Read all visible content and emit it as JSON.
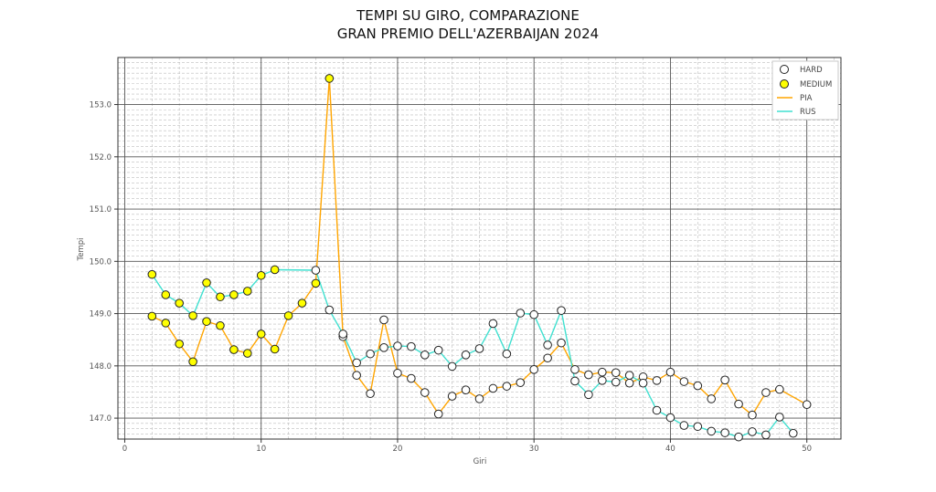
{
  "chart_data": {
    "type": "line",
    "title": [
      "TEMPI SU GIRO, COMPARAZIONE",
      "GRAN PREMIO DELL'AZERBAIJAN 2024"
    ],
    "xlabel": "Giri",
    "ylabel": "Tempi",
    "xlim": [
      -0.5,
      52.5
    ],
    "ylim": [
      146.6,
      153.9
    ],
    "x_ticks": [
      0,
      10,
      20,
      30,
      40,
      50
    ],
    "y_ticks": [
      147.0,
      148.0,
      149.0,
      150.0,
      151.0,
      152.0,
      153.0
    ],
    "grid": true,
    "legend_position": "top-right",
    "legend": [
      {
        "label": "HARD",
        "kind": "marker",
        "fill": "#ffffff"
      },
      {
        "label": "MEDIUM",
        "kind": "marker",
        "fill": "#ffff00"
      },
      {
        "label": "PIA",
        "kind": "line",
        "color": "#ffa500"
      },
      {
        "label": "RUS",
        "kind": "line",
        "color": "#40e0d0"
      }
    ],
    "series": [
      {
        "name": "PIA",
        "color": "#ffa500",
        "points": [
          {
            "x": 2,
            "y": 148.95,
            "compound": "MEDIUM"
          },
          {
            "x": 3,
            "y": 148.82,
            "compound": "MEDIUM"
          },
          {
            "x": 4,
            "y": 148.42,
            "compound": "MEDIUM"
          },
          {
            "x": 5,
            "y": 148.08,
            "compound": "MEDIUM"
          },
          {
            "x": 6,
            "y": 148.85,
            "compound": "MEDIUM"
          },
          {
            "x": 7,
            "y": 148.77,
            "compound": "MEDIUM"
          },
          {
            "x": 8,
            "y": 148.31,
            "compound": "MEDIUM"
          },
          {
            "x": 9,
            "y": 148.24,
            "compound": "MEDIUM"
          },
          {
            "x": 10,
            "y": 148.61,
            "compound": "MEDIUM"
          },
          {
            "x": 11,
            "y": 148.32,
            "compound": "MEDIUM"
          },
          {
            "x": 12,
            "y": 148.96,
            "compound": "MEDIUM"
          },
          {
            "x": 13,
            "y": 149.2,
            "compound": "MEDIUM"
          },
          {
            "x": 14,
            "y": 149.58,
            "compound": "MEDIUM"
          },
          {
            "x": 15,
            "y": 153.5,
            "compound": "MEDIUM"
          },
          {
            "x": 16,
            "y": 148.56,
            "compound": "HARD"
          },
          {
            "x": 17,
            "y": 147.82,
            "compound": "HARD"
          },
          {
            "x": 18,
            "y": 147.47,
            "compound": "HARD"
          },
          {
            "x": 19,
            "y": 148.88,
            "compound": "HARD"
          },
          {
            "x": 20,
            "y": 147.86,
            "compound": "HARD"
          },
          {
            "x": 21,
            "y": 147.76,
            "compound": "HARD"
          },
          {
            "x": 22,
            "y": 147.49,
            "compound": "HARD"
          },
          {
            "x": 23,
            "y": 147.08,
            "compound": "HARD"
          },
          {
            "x": 24,
            "y": 147.42,
            "compound": "HARD"
          },
          {
            "x": 25,
            "y": 147.54,
            "compound": "HARD"
          },
          {
            "x": 26,
            "y": 147.37,
            "compound": "HARD"
          },
          {
            "x": 27,
            "y": 147.57,
            "compound": "HARD"
          },
          {
            "x": 28,
            "y": 147.61,
            "compound": "HARD"
          },
          {
            "x": 29,
            "y": 147.68,
            "compound": "HARD"
          },
          {
            "x": 30,
            "y": 147.93,
            "compound": "HARD"
          },
          {
            "x": 31,
            "y": 148.15,
            "compound": "HARD"
          },
          {
            "x": 32,
            "y": 148.44,
            "compound": "HARD"
          },
          {
            "x": 33,
            "y": 147.93,
            "compound": "HARD"
          },
          {
            "x": 34,
            "y": 147.83,
            "compound": "HARD"
          },
          {
            "x": 35,
            "y": 147.88,
            "compound": "HARD"
          },
          {
            "x": 36,
            "y": 147.87,
            "compound": "HARD"
          },
          {
            "x": 37,
            "y": 147.67,
            "compound": "HARD"
          },
          {
            "x": 38,
            "y": 147.79,
            "compound": "HARD"
          },
          {
            "x": 39,
            "y": 147.72,
            "compound": "HARD"
          },
          {
            "x": 40,
            "y": 147.88,
            "compound": "HARD"
          },
          {
            "x": 41,
            "y": 147.7,
            "compound": "HARD"
          },
          {
            "x": 42,
            "y": 147.62,
            "compound": "HARD"
          },
          {
            "x": 43,
            "y": 147.37,
            "compound": "HARD"
          },
          {
            "x": 44,
            "y": 147.73,
            "compound": "HARD"
          },
          {
            "x": 45,
            "y": 147.27,
            "compound": "HARD"
          },
          {
            "x": 46,
            "y": 147.06,
            "compound": "HARD"
          },
          {
            "x": 47,
            "y": 147.49,
            "compound": "HARD"
          },
          {
            "x": 48,
            "y": 147.55,
            "compound": "HARD"
          },
          {
            "x": 50,
            "y": 147.26,
            "compound": "HARD"
          }
        ]
      },
      {
        "name": "RUS",
        "color": "#40e0d0",
        "points": [
          {
            "x": 2,
            "y": 149.75,
            "compound": "MEDIUM"
          },
          {
            "x": 3,
            "y": 149.36,
            "compound": "MEDIUM"
          },
          {
            "x": 4,
            "y": 149.2,
            "compound": "MEDIUM"
          },
          {
            "x": 5,
            "y": 148.96,
            "compound": "MEDIUM"
          },
          {
            "x": 6,
            "y": 149.59,
            "compound": "MEDIUM"
          },
          {
            "x": 7,
            "y": 149.32,
            "compound": "MEDIUM"
          },
          {
            "x": 8,
            "y": 149.36,
            "compound": "MEDIUM"
          },
          {
            "x": 9,
            "y": 149.43,
            "compound": "MEDIUM"
          },
          {
            "x": 10,
            "y": 149.73,
            "compound": "MEDIUM"
          },
          {
            "x": 11,
            "y": 149.84,
            "compound": "MEDIUM"
          },
          {
            "x": 14,
            "y": 149.83,
            "compound": "HARD"
          },
          {
            "x": 15,
            "y": 149.07,
            "compound": "HARD"
          },
          {
            "x": 16,
            "y": 148.61,
            "compound": "HARD"
          },
          {
            "x": 17,
            "y": 148.06,
            "compound": "HARD"
          },
          {
            "x": 18,
            "y": 148.23,
            "compound": "HARD"
          },
          {
            "x": 19,
            "y": 148.35,
            "compound": "HARD"
          },
          {
            "x": 20,
            "y": 148.38,
            "compound": "HARD"
          },
          {
            "x": 21,
            "y": 148.37,
            "compound": "HARD"
          },
          {
            "x": 22,
            "y": 148.21,
            "compound": "HARD"
          },
          {
            "x": 23,
            "y": 148.3,
            "compound": "HARD"
          },
          {
            "x": 24,
            "y": 147.99,
            "compound": "HARD"
          },
          {
            "x": 25,
            "y": 148.21,
            "compound": "HARD"
          },
          {
            "x": 26,
            "y": 148.33,
            "compound": "HARD"
          },
          {
            "x": 27,
            "y": 148.81,
            "compound": "HARD"
          },
          {
            "x": 28,
            "y": 148.23,
            "compound": "HARD"
          },
          {
            "x": 29,
            "y": 149.01,
            "compound": "HARD"
          },
          {
            "x": 30,
            "y": 148.98,
            "compound": "HARD"
          },
          {
            "x": 31,
            "y": 148.4,
            "compound": "HARD"
          },
          {
            "x": 32,
            "y": 149.06,
            "compound": "HARD"
          },
          {
            "x": 33,
            "y": 147.71,
            "compound": "HARD"
          },
          {
            "x": 34,
            "y": 147.45,
            "compound": "HARD"
          },
          {
            "x": 35,
            "y": 147.72,
            "compound": "HARD"
          },
          {
            "x": 36,
            "y": 147.69,
            "compound": "HARD"
          },
          {
            "x": 37,
            "y": 147.82,
            "compound": "HARD"
          },
          {
            "x": 38,
            "y": 147.67,
            "compound": "HARD"
          },
          {
            "x": 39,
            "y": 147.15,
            "compound": "HARD"
          },
          {
            "x": 40,
            "y": 147.01,
            "compound": "HARD"
          },
          {
            "x": 41,
            "y": 146.86,
            "compound": "HARD"
          },
          {
            "x": 42,
            "y": 146.84,
            "compound": "HARD"
          },
          {
            "x": 43,
            "y": 146.75,
            "compound": "HARD"
          },
          {
            "x": 44,
            "y": 146.72,
            "compound": "HARD"
          },
          {
            "x": 45,
            "y": 146.64,
            "compound": "HARD"
          },
          {
            "x": 46,
            "y": 146.74,
            "compound": "HARD"
          },
          {
            "x": 47,
            "y": 146.68,
            "compound": "HARD"
          },
          {
            "x": 48,
            "y": 147.02,
            "compound": "HARD"
          },
          {
            "x": 49,
            "y": 146.71,
            "compound": "HARD"
          }
        ]
      }
    ]
  }
}
